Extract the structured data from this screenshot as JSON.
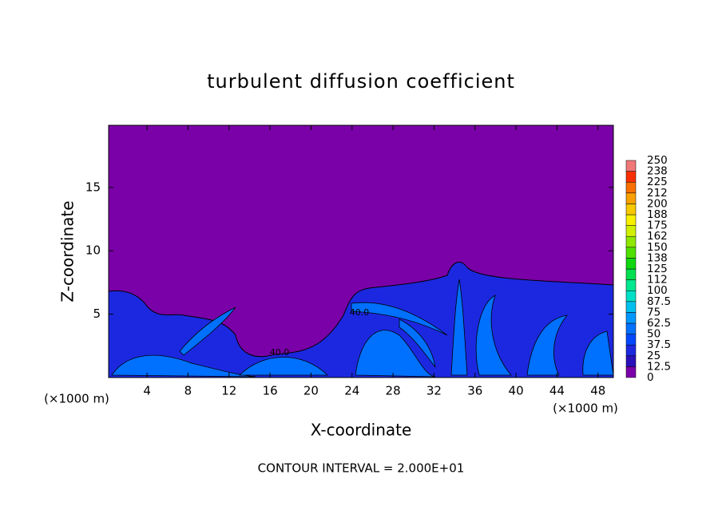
{
  "chart_data": {
    "type": "contour",
    "title": "turbulent diffusion coefficient",
    "xlabel": "X-coordinate",
    "ylabel": "Z-coordinate",
    "x_unit_label": "(×1000 m)",
    "footer": "CONTOUR INTERVAL = 2.000E+01",
    "xlim": [
      0.25,
      49.5
    ],
    "ylim": [
      0,
      19.9
    ],
    "xticks": [
      4,
      8,
      12,
      16,
      20,
      24,
      28,
      32,
      36,
      40,
      44,
      48
    ],
    "yticks": [
      5,
      10,
      15
    ],
    "contour_labels": [
      "40.0",
      "40.0"
    ],
    "colorbar": {
      "levels": [
        0,
        12.5,
        25,
        37.5,
        50,
        62.5,
        75,
        87.5,
        100,
        112,
        125,
        138,
        150,
        162,
        175,
        188,
        200,
        212,
        225,
        238,
        250
      ],
      "colors": [
        "#7a00a8",
        "#2a10b8",
        "#1c28e0",
        "#0048ff",
        "#0070ff",
        "#0098ff",
        "#00c0f0",
        "#00e0c8",
        "#00e890",
        "#00e050",
        "#10d810",
        "#50e000",
        "#90e800",
        "#d0f000",
        "#f8f000",
        "#f8c800",
        "#f8a000",
        "#f87000",
        "#f83000",
        "#f07878"
      ]
    }
  }
}
